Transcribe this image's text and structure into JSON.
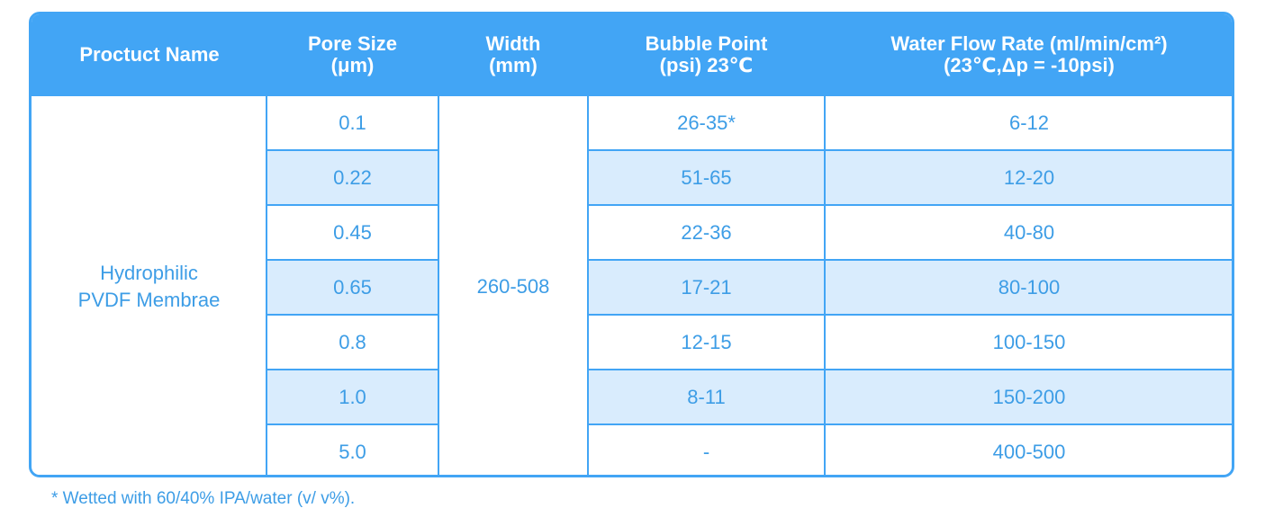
{
  "table": {
    "header": [
      [
        "Proctuct Name"
      ],
      [
        "Pore Size",
        "(μm)"
      ],
      [
        "Width",
        "(mm)"
      ],
      [
        "Bubble Point",
        "(psi) 23℃"
      ],
      [
        "Water Flow Rate (ml/min/cm²)",
        "(23℃,Δp = -10psi)"
      ]
    ],
    "product_name": [
      "Hydrophilic",
      "PVDF Membrae"
    ],
    "width": "260-508",
    "rows": [
      [
        "0.1",
        "26-35*",
        "6-12"
      ],
      [
        "0.22",
        "51-65",
        "12-20"
      ],
      [
        "0.45",
        "22-36",
        "40-80"
      ],
      [
        "0.65",
        "17-21",
        "80-100"
      ],
      [
        "0.8",
        "12-15",
        "100-150"
      ],
      [
        "1.0",
        "8-11",
        "150-200"
      ],
      [
        "5.0",
        "-",
        "400-500"
      ]
    ]
  },
  "footnote": "* Wetted with 60/40% IPA/water (v/ v%)."
}
